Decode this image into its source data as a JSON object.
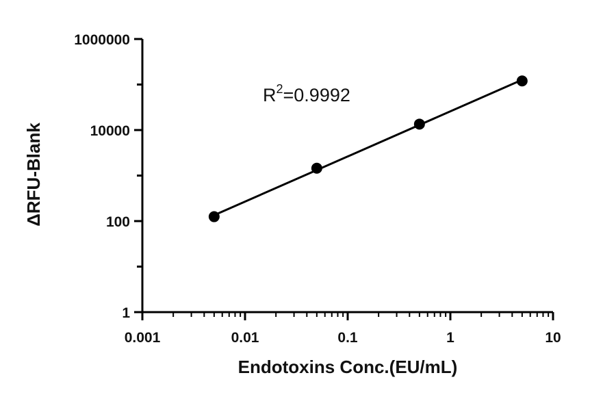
{
  "chart_data": {
    "type": "scatter",
    "xlabel": "Endotoxins Conc.(EU/mL)",
    "ylabel": "ΔRFU-Blank",
    "x_scale": "log",
    "y_scale": "log",
    "xlim": [
      0.001,
      10
    ],
    "ylim": [
      1,
      1000000
    ],
    "x_ticks": [
      "0.001",
      "0.01",
      "0.1",
      "1",
      "10"
    ],
    "y_ticks": [
      "1",
      "100",
      "10000",
      "1000000"
    ],
    "grid": false,
    "series": [
      {
        "x": [
          0.005,
          0.05,
          0.5,
          5
        ],
        "y": [
          125,
          1450,
          13500,
          120000
        ],
        "color": "#000000",
        "marker": "circle",
        "fit_line": true
      }
    ],
    "annotation": {
      "base": "R",
      "superscript": "2",
      "rest": "=0.9992"
    }
  }
}
